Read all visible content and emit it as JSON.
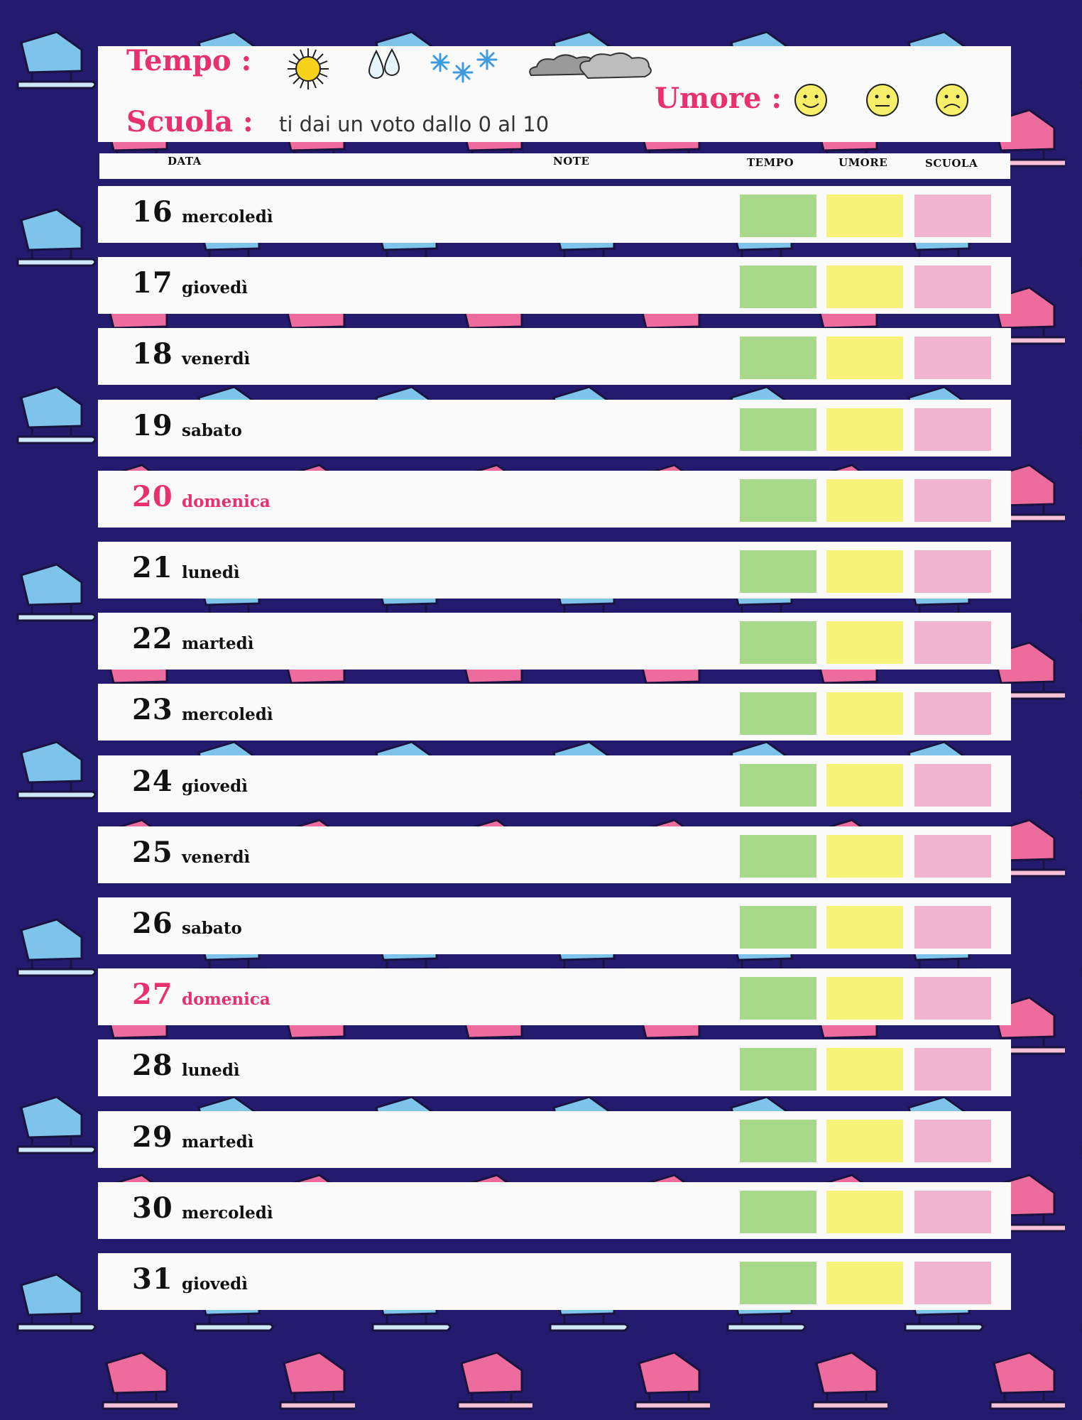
{
  "legend": {
    "tempo_label": "Tempo :",
    "umore_label": "Umore :",
    "scuola_label": "Scuola :",
    "scuola_note": "ti dai un voto dallo 0 al 10",
    "tempo_icons": [
      "sun-icon",
      "rain-drops-icon",
      "snowflakes-icon",
      "clouds-icon"
    ],
    "umore_icons": [
      "happy-face-icon",
      "neutral-face-icon",
      "sad-face-icon"
    ]
  },
  "columns": {
    "data": "DATA",
    "note": "NOTE",
    "tempo": "TEMPO",
    "umore": "UMORE",
    "scuola": "SCUOLA"
  },
  "days": [
    {
      "num": "16",
      "name": "mercoledì",
      "sunday": false
    },
    {
      "num": "17",
      "name": "giovedì",
      "sunday": false
    },
    {
      "num": "18",
      "name": "venerdì",
      "sunday": false
    },
    {
      "num": "19",
      "name": "sabato",
      "sunday": false
    },
    {
      "num": "20",
      "name": "domenica",
      "sunday": true
    },
    {
      "num": "21",
      "name": "lunedì",
      "sunday": false
    },
    {
      "num": "22",
      "name": "martedì",
      "sunday": false
    },
    {
      "num": "23",
      "name": "mercoledì",
      "sunday": false
    },
    {
      "num": "24",
      "name": "giovedì",
      "sunday": false
    },
    {
      "num": "25",
      "name": "venerdì",
      "sunday": false
    },
    {
      "num": "26",
      "name": "sabato",
      "sunday": false
    },
    {
      "num": "27",
      "name": "domenica",
      "sunday": true
    },
    {
      "num": "28",
      "name": "lunedì",
      "sunday": false
    },
    {
      "num": "29",
      "name": "martedì",
      "sunday": false
    },
    {
      "num": "30",
      "name": "mercoledì",
      "sunday": false
    },
    {
      "num": "31",
      "name": "giovedì",
      "sunday": false
    }
  ],
  "colors": {
    "background": "#241a6e",
    "accent_pink": "#e8306c",
    "tempo_box": "#a8d88a",
    "umore_box": "#f7f27a",
    "scuola_box": "#f1b5d0"
  }
}
